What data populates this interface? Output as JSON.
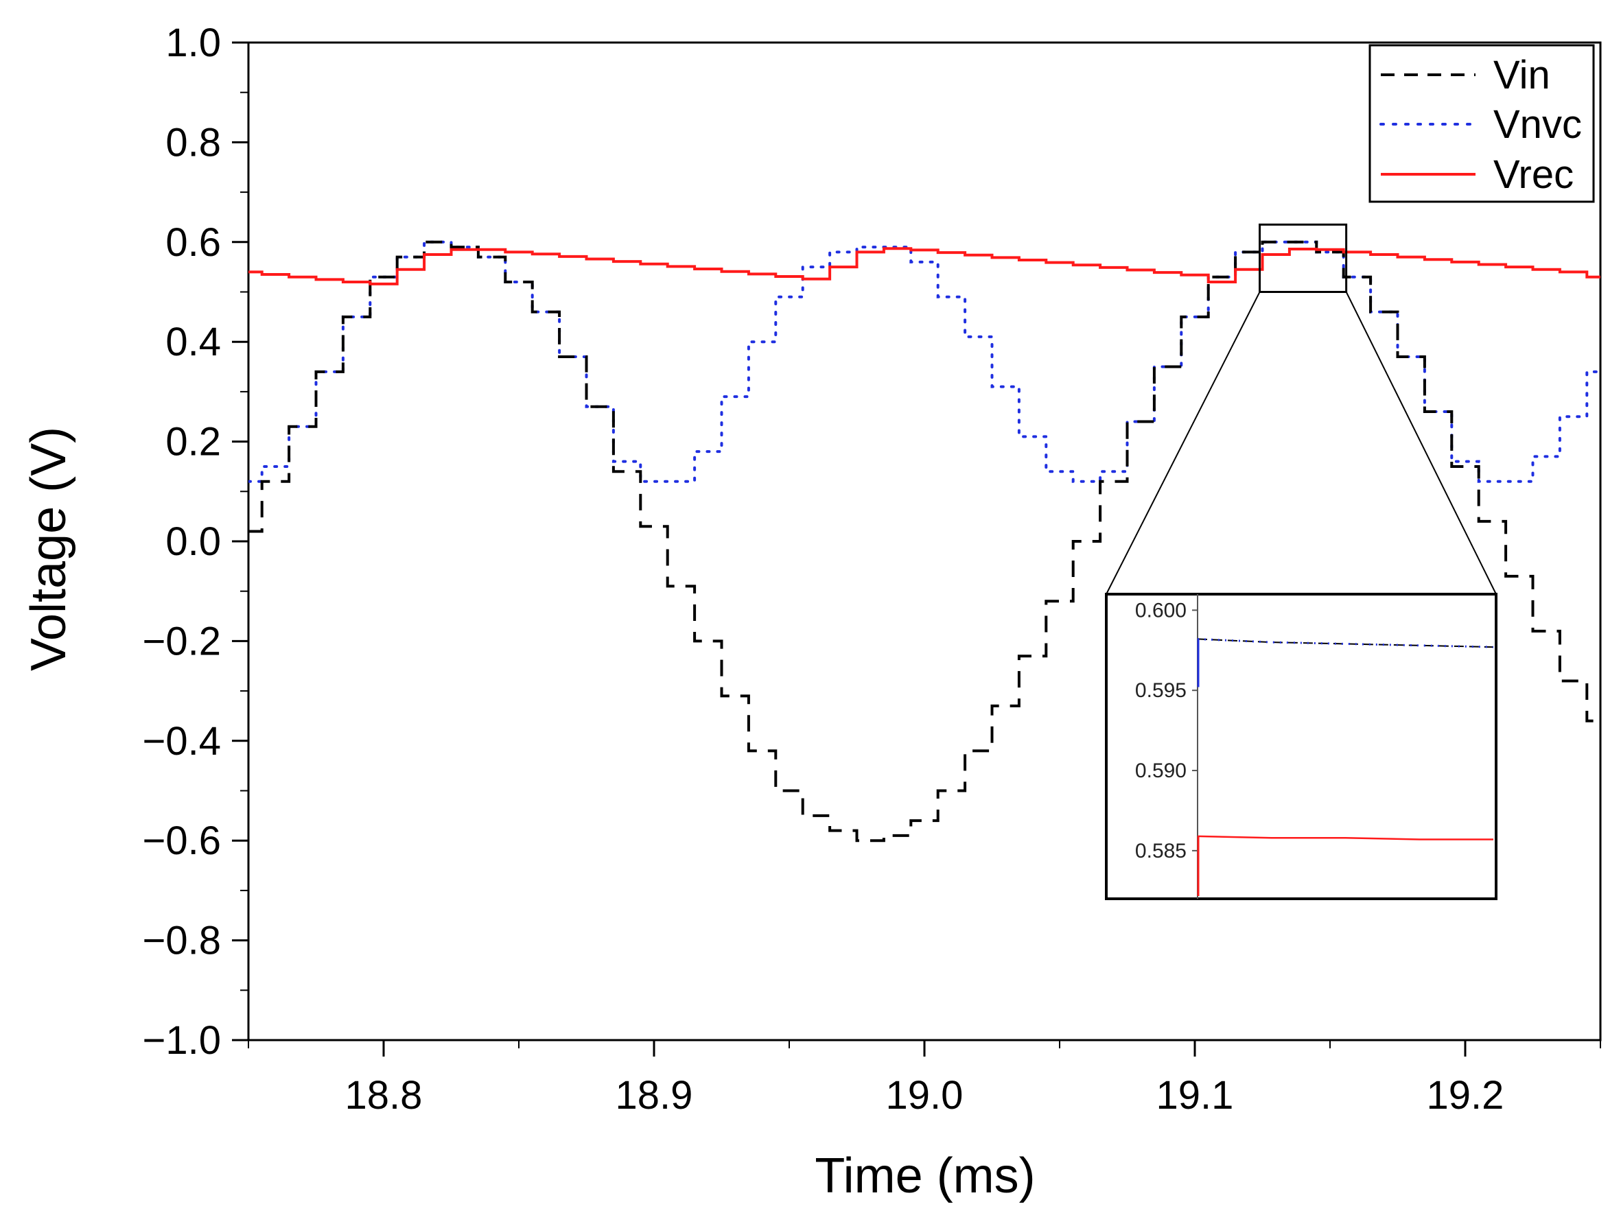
{
  "chart_data": {
    "type": "line",
    "title": "",
    "xlabel": "Time (ms)",
    "ylabel": "Voltage (V)",
    "xlim": [
      18.75,
      19.25
    ],
    "ylim": [
      -1.0,
      1.0
    ],
    "x_ticks": [
      18.8,
      18.9,
      19.0,
      19.1,
      19.2
    ],
    "x_tick_labels": [
      "18.8",
      "18.9",
      "19.0",
      "19.1",
      "19.2"
    ],
    "y_ticks": [
      1.0,
      0.8,
      0.6,
      0.4,
      0.2,
      0.0,
      -0.2,
      -0.4,
      -0.6,
      -0.8,
      -1.0
    ],
    "y_tick_labels": [
      "1.0",
      "0.8",
      "0.6",
      "0.4",
      "0.2",
      "0.0",
      "−0.2",
      "−0.4",
      "−0.6",
      "−0.8",
      "−1.0"
    ],
    "legend_position": "top-right",
    "series": [
      {
        "name": "Vin",
        "style": "dashed",
        "color": "#000000",
        "x": [
          18.75,
          18.76,
          18.77,
          18.78,
          18.79,
          18.8,
          18.81,
          18.82,
          18.83,
          18.84,
          18.85,
          18.86,
          18.87,
          18.88,
          18.89,
          18.9,
          18.91,
          18.92,
          18.93,
          18.94,
          18.95,
          18.96,
          18.97,
          18.98,
          18.99,
          19.0,
          19.01,
          19.02,
          19.03,
          19.04,
          19.05,
          19.06,
          19.07,
          19.08,
          19.09,
          19.1,
          19.11,
          19.12,
          19.13,
          19.14,
          19.15,
          19.16,
          19.17,
          19.18,
          19.19,
          19.2,
          19.21,
          19.22,
          19.23,
          19.24,
          19.25
        ],
        "values": [
          0.02,
          0.12,
          0.23,
          0.34,
          0.45,
          0.53,
          0.57,
          0.6,
          0.59,
          0.57,
          0.52,
          0.46,
          0.37,
          0.27,
          0.14,
          0.03,
          -0.09,
          -0.2,
          -0.31,
          -0.42,
          -0.5,
          -0.55,
          -0.58,
          -0.6,
          -0.59,
          -0.56,
          -0.5,
          -0.42,
          -0.33,
          -0.23,
          -0.12,
          0.0,
          0.12,
          0.24,
          0.35,
          0.45,
          0.53,
          0.58,
          0.6,
          0.6,
          0.58,
          0.53,
          0.46,
          0.37,
          0.26,
          0.15,
          0.04,
          -0.07,
          -0.18,
          -0.28,
          -0.36
        ]
      },
      {
        "name": "Vnvc",
        "style": "dotted",
        "color": "#1f2fe0",
        "x": [
          18.75,
          18.76,
          18.77,
          18.78,
          18.79,
          18.8,
          18.81,
          18.82,
          18.83,
          18.84,
          18.85,
          18.86,
          18.87,
          18.88,
          18.89,
          18.9,
          18.91,
          18.92,
          18.93,
          18.94,
          18.95,
          18.96,
          18.97,
          18.98,
          18.99,
          19.0,
          19.01,
          19.02,
          19.03,
          19.04,
          19.05,
          19.06,
          19.07,
          19.08,
          19.09,
          19.1,
          19.11,
          19.12,
          19.13,
          19.14,
          19.15,
          19.16,
          19.17,
          19.18,
          19.19,
          19.2,
          19.21,
          19.22,
          19.23,
          19.24,
          19.25
        ],
        "values": [
          0.12,
          0.15,
          0.23,
          0.34,
          0.45,
          0.53,
          0.57,
          0.6,
          0.59,
          0.57,
          0.52,
          0.46,
          0.37,
          0.27,
          0.16,
          0.12,
          0.12,
          0.18,
          0.29,
          0.4,
          0.49,
          0.55,
          0.58,
          0.59,
          0.59,
          0.56,
          0.49,
          0.41,
          0.31,
          0.21,
          0.14,
          0.12,
          0.14,
          0.24,
          0.35,
          0.45,
          0.53,
          0.58,
          0.6,
          0.6,
          0.58,
          0.53,
          0.46,
          0.37,
          0.26,
          0.16,
          0.12,
          0.12,
          0.17,
          0.25,
          0.34
        ]
      },
      {
        "name": "Vrec",
        "style": "solid",
        "color": "#ff1a1a",
        "x": [
          18.75,
          18.76,
          18.77,
          18.78,
          18.79,
          18.8,
          18.81,
          18.82,
          18.83,
          18.84,
          18.85,
          18.86,
          18.87,
          18.88,
          18.89,
          18.9,
          18.91,
          18.92,
          18.93,
          18.94,
          18.95,
          18.96,
          18.97,
          18.98,
          18.99,
          19.0,
          19.01,
          19.02,
          19.03,
          19.04,
          19.05,
          19.06,
          19.07,
          19.08,
          19.09,
          19.1,
          19.11,
          19.12,
          19.13,
          19.14,
          19.15,
          19.16,
          19.17,
          19.18,
          19.19,
          19.2,
          19.21,
          19.22,
          19.23,
          19.24,
          19.25
        ],
        "values": [
          0.54,
          0.535,
          0.53,
          0.525,
          0.52,
          0.516,
          0.545,
          0.575,
          0.585,
          0.585,
          0.58,
          0.576,
          0.571,
          0.566,
          0.561,
          0.556,
          0.551,
          0.546,
          0.541,
          0.536,
          0.531,
          0.526,
          0.55,
          0.58,
          0.587,
          0.584,
          0.579,
          0.574,
          0.569,
          0.564,
          0.559,
          0.554,
          0.549,
          0.544,
          0.539,
          0.534,
          0.52,
          0.545,
          0.575,
          0.586,
          0.585,
          0.58,
          0.575,
          0.57,
          0.565,
          0.56,
          0.555,
          0.55,
          0.545,
          0.54,
          0.53
        ]
      }
    ],
    "zoom_box": {
      "x": [
        19.124,
        19.156
      ],
      "y": [
        0.5,
        0.635
      ]
    },
    "inset": {
      "ylim": [
        0.582,
        0.601
      ],
      "y_ticks": [
        0.6,
        0.595,
        0.59,
        0.585
      ],
      "y_tick_labels": [
        "0.600",
        "0.595",
        "0.590",
        "0.585"
      ],
      "series": [
        {
          "name": "Vin",
          "values": [
            0.5982,
            0.598,
            0.5979,
            0.5978,
            0.5977
          ]
        },
        {
          "name": "Vnvc",
          "values": [
            0.5982,
            0.598,
            0.5979,
            0.5978,
            0.5977
          ]
        },
        {
          "name": "Vrec",
          "values": [
            0.5859,
            0.5858,
            0.5858,
            0.5857,
            0.5857
          ]
        }
      ]
    }
  }
}
